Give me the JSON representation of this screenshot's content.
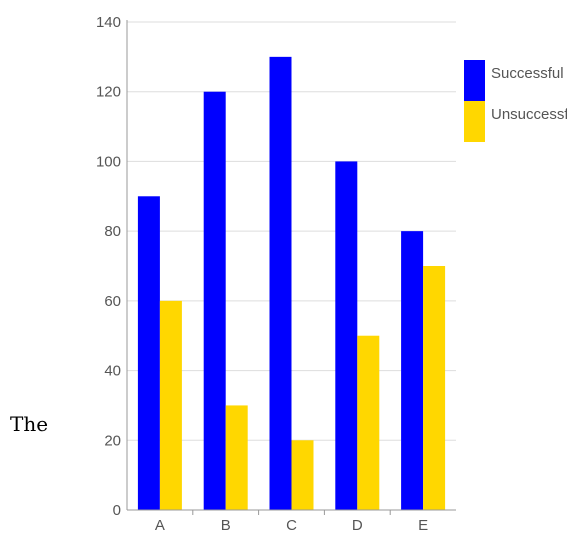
{
  "page_text": "The",
  "chart_data": {
    "type": "bar",
    "categories": [
      "A",
      "B",
      "C",
      "D",
      "E"
    ],
    "series": [
      {
        "name": "Successful",
        "values": [
          90,
          120,
          130,
          100,
          80
        ],
        "color": "#0000ff"
      },
      {
        "name": "Unsuccessful",
        "values": [
          60,
          30,
          20,
          50,
          70
        ],
        "color": "#ffd700"
      }
    ],
    "ylim": [
      0,
      140
    ],
    "yticks": [
      0,
      20,
      40,
      60,
      80,
      100,
      120,
      140
    ],
    "grid": true,
    "legend": "right",
    "title": "",
    "xlabel": "",
    "ylabel": ""
  }
}
